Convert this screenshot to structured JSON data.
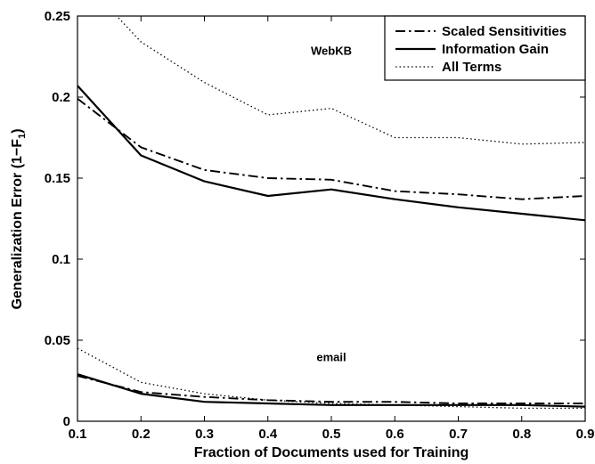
{
  "chart_data": {
    "type": "line",
    "xlabel": "Fraction of Documents used for Training",
    "ylabel": "Generalization Error (1−F",
    "ylabel_subscript": "1",
    "ylabel_suffix": ")",
    "xlim": [
      0.1,
      0.9
    ],
    "ylim": [
      0,
      0.25
    ],
    "x_ticks": [
      {
        "value": 0.1,
        "label": "0.1"
      },
      {
        "value": 0.2,
        "label": "0.2"
      },
      {
        "value": 0.3,
        "label": "0.3"
      },
      {
        "value": 0.4,
        "label": "0.4"
      },
      {
        "value": 0.5,
        "label": "0.5"
      },
      {
        "value": 0.6,
        "label": "0.6"
      },
      {
        "value": 0.7,
        "label": "0.7"
      },
      {
        "value": 0.8,
        "label": "0.8"
      },
      {
        "value": 0.9,
        "label": "0.9"
      }
    ],
    "y_ticks": [
      {
        "value": 0,
        "label": "0"
      },
      {
        "value": 0.05,
        "label": "0.05"
      },
      {
        "value": 0.1,
        "label": "0.1"
      },
      {
        "value": 0.15,
        "label": "0.15"
      },
      {
        "value": 0.2,
        "label": "0.2"
      },
      {
        "value": 0.25,
        "label": "0.25"
      }
    ],
    "grid": false,
    "legend_position": "top-right",
    "x": [
      0.1,
      0.2,
      0.3,
      0.4,
      0.5,
      0.6,
      0.7,
      0.8,
      0.9
    ],
    "series": [
      {
        "name": "Scaled Sensitivities",
        "style": "dashdot",
        "group": "WebKB",
        "values": [
          0.199,
          0.169,
          0.155,
          0.15,
          0.149,
          0.142,
          0.14,
          0.137,
          0.139
        ]
      },
      {
        "name": "Information Gain",
        "style": "solid",
        "group": "WebKB",
        "values": [
          0.207,
          0.164,
          0.148,
          0.139,
          0.143,
          0.137,
          0.132,
          0.128,
          0.124
        ]
      },
      {
        "name": "All Terms",
        "style": "dotted",
        "group": "WebKB",
        "values": [
          0.276,
          0.234,
          0.209,
          0.189,
          0.193,
          0.175,
          0.175,
          0.171,
          0.172
        ]
      },
      {
        "name": "Scaled Sensitivities",
        "style": "dashdot",
        "group": "email",
        "values": [
          0.028,
          0.018,
          0.015,
          0.013,
          0.012,
          0.012,
          0.011,
          0.011,
          0.011
        ]
      },
      {
        "name": "Information Gain",
        "style": "solid",
        "group": "email",
        "values": [
          0.029,
          0.017,
          0.012,
          0.011,
          0.01,
          0.01,
          0.01,
          0.01,
          0.009
        ]
      },
      {
        "name": "All Terms",
        "style": "dotted",
        "group": "email",
        "values": [
          0.045,
          0.024,
          0.017,
          0.013,
          0.011,
          0.01,
          0.009,
          0.008,
          0.008
        ]
      }
    ],
    "legend": [
      {
        "name": "Scaled Sensitivities",
        "style": "dashdot"
      },
      {
        "name": "Information Gain",
        "style": "solid"
      },
      {
        "name": "All Terms",
        "style": "dotted"
      }
    ],
    "annotations": [
      {
        "text": "WebKB",
        "x": 0.5,
        "y": 0.226
      },
      {
        "text": "email",
        "x": 0.5,
        "y": 0.037
      }
    ]
  }
}
